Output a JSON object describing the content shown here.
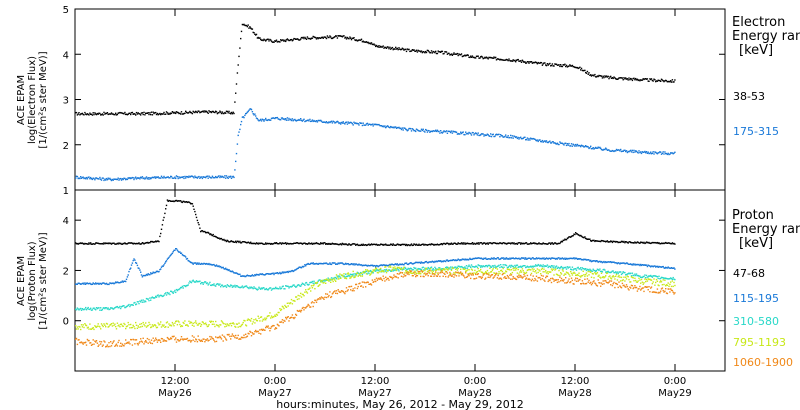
{
  "xlabel": "hours:minutes, May 26, 2012 - May 29, 2012",
  "x_ticks": [
    {
      "time": "12:00",
      "date": "May26",
      "hour": 12
    },
    {
      "time": "0:00",
      "date": "May27",
      "hour": 24
    },
    {
      "time": "12:00",
      "date": "May27",
      "hour": 36
    },
    {
      "time": "0:00",
      "date": "May28",
      "hour": 48
    },
    {
      "time": "12:00",
      "date": "May28",
      "hour": 60
    },
    {
      "time": "0:00",
      "date": "May29",
      "hour": 72
    }
  ],
  "colors": {
    "black": "#000000",
    "blue": "#1878d8",
    "cyan": "#28d8c8",
    "yellow": "#c8e818",
    "orange": "#f08818"
  },
  "chart_data": [
    {
      "type": "scatter",
      "panel": "electron",
      "ylabel_lines": [
        "ACE EPAM",
        "log(Electron Flux)",
        "[1/(cm²s ster MeV)]"
      ],
      "xlim": [
        0,
        78
      ],
      "ylim": [
        1,
        5
      ],
      "y_ticks": [
        "1",
        "2",
        "3",
        "4",
        "5"
      ],
      "legend_title": [
        "Electron",
        "Energy ran",
        "[keV]"
      ],
      "grid": false,
      "series": [
        {
          "name": "38-53",
          "color": "black",
          "points": [
            [
              0,
              2.7
            ],
            [
              4,
              2.7
            ],
            [
              8,
              2.7
            ],
            [
              12,
              2.72
            ],
            [
              16,
              2.74
            ],
            [
              19,
              2.72
            ],
            [
              19.5,
              3.8
            ],
            [
              20,
              4.7
            ],
            [
              21,
              4.6
            ],
            [
              22,
              4.35
            ],
            [
              24,
              4.3
            ],
            [
              28,
              4.38
            ],
            [
              32,
              4.4
            ],
            [
              35,
              4.3
            ],
            [
              36,
              4.2
            ],
            [
              40,
              4.1
            ],
            [
              44,
              4.05
            ],
            [
              48,
              3.95
            ],
            [
              52,
              3.9
            ],
            [
              56,
              3.8
            ],
            [
              60,
              3.75
            ],
            [
              62,
              3.55
            ],
            [
              64,
              3.5
            ],
            [
              68,
              3.45
            ],
            [
              72,
              3.42
            ]
          ]
        },
        {
          "name": "175-315",
          "color": "blue",
          "points": [
            [
              0,
              1.3
            ],
            [
              4,
              1.25
            ],
            [
              8,
              1.28
            ],
            [
              12,
              1.3
            ],
            [
              16,
              1.3
            ],
            [
              19,
              1.3
            ],
            [
              19.5,
              2.2
            ],
            [
              20,
              2.6
            ],
            [
              21,
              2.8
            ],
            [
              22,
              2.55
            ],
            [
              24,
              2.6
            ],
            [
              28,
              2.55
            ],
            [
              32,
              2.5
            ],
            [
              36,
              2.45
            ],
            [
              40,
              2.35
            ],
            [
              44,
              2.3
            ],
            [
              48,
              2.25
            ],
            [
              52,
              2.2
            ],
            [
              56,
              2.1
            ],
            [
              60,
              2.0
            ],
            [
              64,
              1.9
            ],
            [
              68,
              1.85
            ],
            [
              72,
              1.82
            ]
          ]
        }
      ]
    },
    {
      "type": "scatter",
      "panel": "proton",
      "ylabel_lines": [
        "ACE EPAM",
        "log(Proton Flux)",
        "[1/(cm²s ster MeV)]"
      ],
      "xlim": [
        0,
        78
      ],
      "ylim": [
        -2,
        5.2
      ],
      "y_ticks": [
        "0",
        "2",
        "4"
      ],
      "legend_title": [
        "Proton",
        "Energy ran",
        "[keV]"
      ],
      "grid": false,
      "series": [
        {
          "name": "47-68",
          "color": "black",
          "points": [
            [
              0,
              3.1
            ],
            [
              4,
              3.1
            ],
            [
              8,
              3.1
            ],
            [
              10,
              3.2
            ],
            [
              11,
              4.8
            ],
            [
              12,
              4.8
            ],
            [
              14,
              4.7
            ],
            [
              15,
              3.6
            ],
            [
              16,
              3.5
            ],
            [
              18,
              3.2
            ],
            [
              22,
              3.1
            ],
            [
              26,
              3.1
            ],
            [
              30,
              3.1
            ],
            [
              34,
              3.05
            ],
            [
              38,
              3.05
            ],
            [
              42,
              3.05
            ],
            [
              46,
              3.1
            ],
            [
              50,
              3.1
            ],
            [
              54,
              3.1
            ],
            [
              58,
              3.1
            ],
            [
              60,
              3.5
            ],
            [
              62,
              3.2
            ],
            [
              66,
              3.15
            ],
            [
              72,
              3.1
            ]
          ]
        },
        {
          "name": "115-195",
          "color": "blue",
          "points": [
            [
              0,
              1.5
            ],
            [
              4,
              1.5
            ],
            [
              6,
              1.6
            ],
            [
              7,
              2.5
            ],
            [
              8,
              1.8
            ],
            [
              10,
              2.0
            ],
            [
              12,
              2.9
            ],
            [
              13,
              2.6
            ],
            [
              14,
              2.3
            ],
            [
              16,
              2.3
            ],
            [
              18,
              2.1
            ],
            [
              20,
              1.8
            ],
            [
              24,
              1.9
            ],
            [
              26,
              2.0
            ],
            [
              28,
              2.3
            ],
            [
              32,
              2.3
            ],
            [
              36,
              2.2
            ],
            [
              40,
              2.3
            ],
            [
              44,
              2.4
            ],
            [
              48,
              2.5
            ],
            [
              52,
              2.5
            ],
            [
              56,
              2.5
            ],
            [
              60,
              2.5
            ],
            [
              62,
              2.4
            ],
            [
              66,
              2.3
            ],
            [
              72,
              2.1
            ]
          ]
        },
        {
          "name": "310-580",
          "color": "cyan",
          "points": [
            [
              0,
              0.5
            ],
            [
              4,
              0.5
            ],
            [
              6,
              0.6
            ],
            [
              8,
              0.8
            ],
            [
              10,
              1.0
            ],
            [
              12,
              1.2
            ],
            [
              14,
              1.6
            ],
            [
              16,
              1.5
            ],
            [
              18,
              1.4
            ],
            [
              20,
              1.4
            ],
            [
              22,
              1.3
            ],
            [
              24,
              1.3
            ],
            [
              28,
              1.5
            ],
            [
              32,
              1.8
            ],
            [
              36,
              2.0
            ],
            [
              40,
              2.1
            ],
            [
              44,
              2.1
            ],
            [
              48,
              2.2
            ],
            [
              52,
              2.2
            ],
            [
              56,
              2.2
            ],
            [
              60,
              2.1
            ],
            [
              64,
              2.0
            ],
            [
              68,
              1.8
            ],
            [
              72,
              1.7
            ]
          ]
        },
        {
          "name": "795-1193",
          "color": "yellow",
          "points": [
            [
              0,
              -0.2
            ],
            [
              4,
              -0.2
            ],
            [
              8,
              -0.15
            ],
            [
              12,
              -0.1
            ],
            [
              16,
              -0.1
            ],
            [
              20,
              -0.1
            ],
            [
              22,
              0.1
            ],
            [
              24,
              0.3
            ],
            [
              26,
              0.8
            ],
            [
              28,
              1.3
            ],
            [
              30,
              1.6
            ],
            [
              32,
              1.8
            ],
            [
              34,
              1.9
            ],
            [
              36,
              2.0
            ],
            [
              38,
              2.1
            ],
            [
              40,
              2.0
            ],
            [
              44,
              2.0
            ],
            [
              48,
              2.0
            ],
            [
              52,
              2.0
            ],
            [
              56,
              2.0
            ],
            [
              60,
              1.9
            ],
            [
              64,
              1.8
            ],
            [
              68,
              1.6
            ],
            [
              72,
              1.5
            ]
          ]
        },
        {
          "name": "1060-1900",
          "color": "orange",
          "points": [
            [
              0,
              -0.8
            ],
            [
              4,
              -0.9
            ],
            [
              8,
              -0.8
            ],
            [
              12,
              -0.7
            ],
            [
              16,
              -0.7
            ],
            [
              20,
              -0.6
            ],
            [
              22,
              -0.4
            ],
            [
              24,
              -0.2
            ],
            [
              26,
              0.2
            ],
            [
              28,
              0.6
            ],
            [
              30,
              1.0
            ],
            [
              32,
              1.2
            ],
            [
              34,
              1.4
            ],
            [
              36,
              1.6
            ],
            [
              38,
              1.8
            ],
            [
              40,
              1.9
            ],
            [
              44,
              1.9
            ],
            [
              48,
              1.8
            ],
            [
              52,
              1.8
            ],
            [
              56,
              1.7
            ],
            [
              60,
              1.6
            ],
            [
              64,
              1.5
            ],
            [
              68,
              1.3
            ],
            [
              72,
              1.2
            ]
          ]
        }
      ]
    }
  ]
}
